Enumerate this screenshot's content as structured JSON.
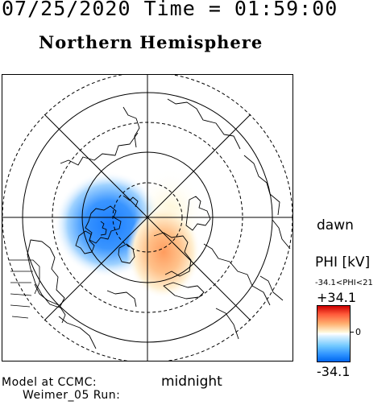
{
  "header": {
    "date_time": "07/25/2020 Time = 01:59:00",
    "title": "Northern Hemisphere"
  },
  "map": {
    "orientation_labels": {
      "dawn": "dawn",
      "midnight": "midnight"
    },
    "latitude_circles": {
      "solid_count": 3,
      "dashed_count": 3
    },
    "meridians": "every 45 degrees",
    "projection": "polar, magnetic local time",
    "potential_pattern": {
      "dusk_midnight_cell": "negative (blue)",
      "dawn_midnight_cell": "positive (red/orange)"
    }
  },
  "colorbar": {
    "quantity": "PHI [kV]",
    "range_text": "-34.1<PHI<21",
    "max_label": "+34.1",
    "zero_label": "0",
    "min_label": "-34.1",
    "colors": {
      "max": "#cc0000",
      "mid_positive": "#ffb070",
      "zero": "#ffffff",
      "mid_negative": "#70c8ff",
      "min": "#0066ee"
    }
  },
  "footer": {
    "model_line1": "Model at CCMC:",
    "model_line2": "Weimer_05 Run:"
  }
}
